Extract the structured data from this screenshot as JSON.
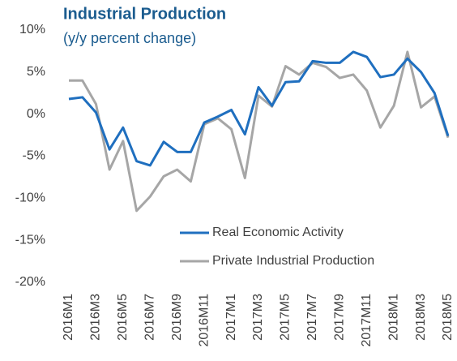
{
  "chart_data": {
    "type": "line",
    "title": "Industrial Production",
    "subtitle": "(y/y percent change)",
    "categories": [
      "2016M1",
      null,
      "2016M3",
      null,
      "2016M5",
      null,
      "2016M7",
      null,
      "2016M9",
      null,
      "2016M11",
      null,
      "2017M1",
      null,
      "2017M3",
      null,
      "2017M5",
      null,
      "2017M7",
      null,
      "2017M9",
      null,
      "2017M11",
      null,
      "2018M1",
      null,
      "2018M3",
      null,
      "2018M5"
    ],
    "series": [
      {
        "name": "Real Economic Activity",
        "color": "#1f6fbf",
        "values": [
          1.8,
          2.0,
          0.2,
          -4.2,
          -1.6,
          -5.6,
          -6.1,
          -3.3,
          -4.5,
          -4.5,
          -1.0,
          -0.3,
          0.5,
          -2.4,
          3.2,
          1.0,
          3.8,
          3.9,
          6.3,
          6.1,
          6.1,
          7.4,
          6.8,
          4.4,
          4.7,
          6.6,
          5.0,
          2.5,
          -2.6
        ]
      },
      {
        "name": "Private Industrial Production",
        "color": "#a6a6a6",
        "values": [
          4.0,
          4.0,
          1.2,
          -6.6,
          -3.2,
          -11.5,
          -9.8,
          -7.4,
          -6.6,
          -8.0,
          -1.2,
          -0.5,
          -1.8,
          -7.6,
          2.2,
          0.9,
          5.7,
          4.7,
          6.1,
          5.6,
          4.3,
          4.7,
          2.8,
          -1.6,
          1.0,
          7.4,
          0.8,
          2.1,
          -2.8
        ]
      }
    ],
    "ylim": [
      -20,
      10
    ],
    "yticks": [
      {
        "value": -20,
        "label": "-20%"
      },
      {
        "value": -15,
        "label": "-15%"
      },
      {
        "value": -10,
        "label": "-10%"
      },
      {
        "value": -5,
        "label": "-5%"
      },
      {
        "value": 0,
        "label": "0%"
      },
      {
        "value": 5,
        "label": "5%"
      },
      {
        "value": 10,
        "label": "10%"
      }
    ],
    "grid": false,
    "legend": "lower-center"
  }
}
